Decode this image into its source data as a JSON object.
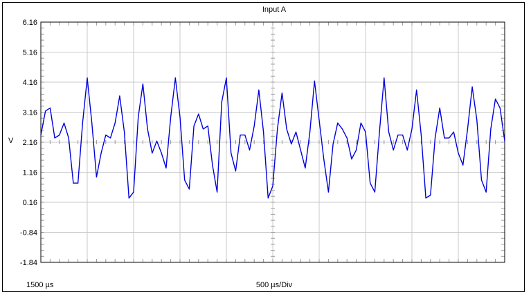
{
  "window": {
    "title": "Input A",
    "x_start_label": "1500 µs",
    "timebase_label": "500 µs/Div",
    "y_unit": "V"
  },
  "colors": {
    "trace": "#0000dd",
    "grid": "#c8c8c8",
    "frame": "#000000",
    "background": "#ffffff"
  },
  "chart_data": {
    "type": "line",
    "title": "Input A",
    "ylabel": "V",
    "xlabel": "500 µs/Div",
    "y_ticks": [
      "6.16",
      "5.16",
      "4.16",
      "3.16",
      "2.16",
      "1.16",
      "0.16",
      "-0.84",
      "-1.84"
    ],
    "ylim": [
      -1.84,
      6.16
    ],
    "xlim": [
      1500,
      6500
    ],
    "grid": true,
    "x_divisions": 10,
    "y_divisions": 8,
    "series": [
      {
        "x": [
          1500,
          1550,
          1600,
          1650,
          1700,
          1750,
          1800,
          1850,
          1900,
          1950,
          2000,
          2050,
          2100,
          2150,
          2200,
          2250,
          2300,
          2350,
          2400,
          2450,
          2500,
          2550,
          2600,
          2650,
          2700,
          2750,
          2800,
          2850,
          2900,
          2950,
          3000,
          3050,
          3100,
          3150,
          3200,
          3250,
          3300,
          3350,
          3400,
          3450,
          3500,
          3550,
          3600,
          3650,
          3700,
          3750,
          3800,
          3850,
          3900,
          3950,
          4000,
          4050,
          4100,
          4150,
          4200,
          4250,
          4300,
          4350,
          4400,
          4450,
          4500,
          4550,
          4600,
          4650,
          4700,
          4750,
          4800,
          4850,
          4900,
          4950,
          5000,
          5050,
          5100,
          5150,
          5200,
          5250,
          5300,
          5350,
          5400,
          5450,
          5500,
          5550,
          5600,
          5650,
          5700,
          5750,
          5800,
          5850,
          5900,
          5950,
          6000,
          6050,
          6100,
          6150,
          6200,
          6250,
          6300,
          6350,
          6400,
          6450,
          6500
        ],
        "y": [
          2.4,
          3.2,
          3.3,
          2.3,
          2.4,
          2.8,
          2.3,
          0.8,
          0.8,
          2.8,
          4.3,
          2.8,
          1.0,
          1.8,
          2.4,
          2.3,
          2.8,
          3.7,
          2.5,
          0.3,
          0.5,
          3.0,
          4.1,
          2.6,
          1.8,
          2.2,
          1.8,
          1.3,
          3.0,
          4.3,
          3.0,
          0.9,
          0.6,
          2.7,
          3.1,
          2.6,
          2.7,
          1.4,
          0.5,
          3.5,
          4.3,
          1.8,
          1.2,
          2.4,
          2.4,
          1.9,
          2.7,
          3.9,
          2.5,
          0.3,
          0.7,
          2.6,
          3.8,
          2.6,
          2.1,
          2.5,
          1.9,
          1.3,
          2.5,
          4.2,
          2.9,
          1.6,
          0.5,
          2.1,
          2.8,
          2.6,
          2.3,
          1.6,
          1.9,
          2.8,
          2.5,
          0.8,
          0.5,
          2.5,
          4.3,
          2.5,
          1.9,
          2.4,
          2.4,
          1.9,
          2.6,
          3.9,
          2.4,
          0.3,
          0.4,
          2.3,
          3.3,
          2.3,
          2.3,
          2.5,
          1.8,
          1.4,
          2.6,
          4.0,
          2.9,
          0.9,
          0.5,
          2.6,
          3.6,
          3.3,
          2.2
        ]
      }
    ]
  }
}
